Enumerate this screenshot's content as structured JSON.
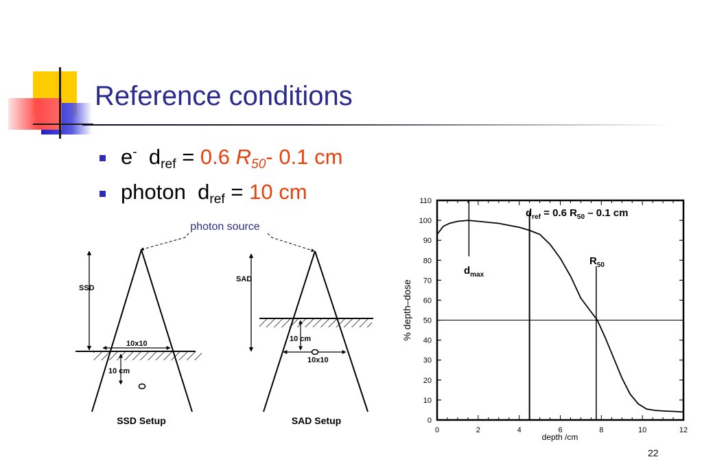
{
  "slide": {
    "title": "Reference conditions",
    "page_number": "22"
  },
  "bullets": [
    {
      "particle": "e",
      "particle_sup": "-",
      "d": "d",
      "sub": "ref",
      "equals": "=",
      "value": "0.6",
      "r_symbol": "R",
      "r_sub": "50",
      "rest": "- 0.1 cm"
    },
    {
      "particle": "photon",
      "d": "d",
      "sub": "ref",
      "equals": "=",
      "value": "10 cm"
    }
  ],
  "setup_diagram": {
    "source_label": "photon source",
    "ssd": {
      "ssd_label": "SSD",
      "field_label": "10x10",
      "depth_label": "10 cm",
      "caption": "SSD Setup"
    },
    "sad": {
      "sad_label": "SAD",
      "depth_label": "10 cm",
      "field_label": "10x10",
      "caption": "SAD Setup"
    }
  },
  "chart_data": {
    "type": "line",
    "xlabel": "depth /cm",
    "ylabel": "% depth–dose",
    "xlim": [
      0,
      12
    ],
    "ylim": [
      0,
      110
    ],
    "xticks": [
      0,
      2,
      4,
      6,
      8,
      10,
      12
    ],
    "yticks": [
      0,
      10,
      20,
      30,
      40,
      50,
      60,
      70,
      80,
      90,
      100,
      110
    ],
    "series": [
      {
        "x": [
          0,
          0.3,
          0.6,
          1.0,
          1.5,
          2.0,
          2.5,
          3.0,
          3.5,
          4.0,
          4.5,
          5.0,
          5.5,
          6.0,
          6.5,
          7.0,
          7.4,
          7.8,
          8.2,
          8.6,
          9.0,
          9.4,
          9.8,
          10.2,
          10.6,
          11.0,
          11.5,
          12.0
        ],
        "y": [
          93,
          97,
          98.5,
          99.5,
          100,
          99.5,
          99,
          98.5,
          97.5,
          96.5,
          95,
          93,
          88,
          81,
          72,
          61,
          55.5,
          50,
          41,
          31,
          21,
          13,
          8,
          5.5,
          4.8,
          4.5,
          4.3,
          4
        ]
      }
    ],
    "hline_y": 50,
    "vlines": [
      {
        "x": 4.5,
        "label_main": "d",
        "label_sub": "ref",
        "label_tail": " = 0.6 R",
        "label_sub2": "50",
        "label_end": " – 0.1 cm"
      },
      {
        "x": 7.75,
        "label_main": "R",
        "label_sub": "50"
      }
    ],
    "dmax": {
      "x": 1.55,
      "label_main": "d",
      "label_sub": "max"
    },
    "grid": false
  }
}
